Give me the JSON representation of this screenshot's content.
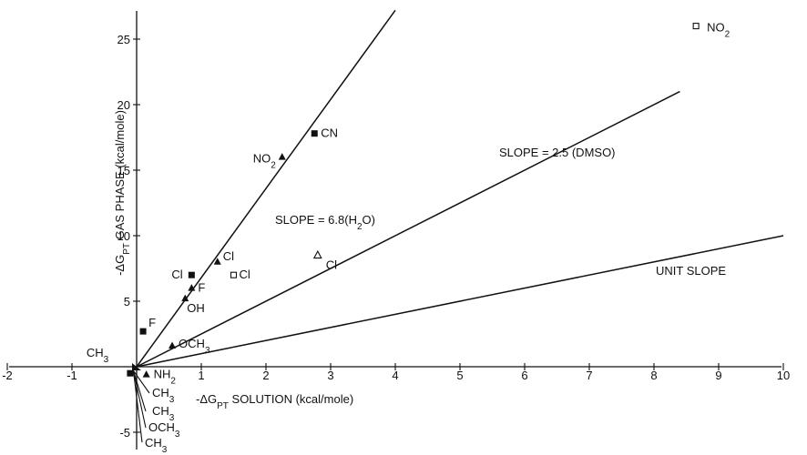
{
  "chart_data": {
    "type": "scatter",
    "title": "",
    "xlabel": "-ΔG_PT SOLUTION (kcal/mole)",
    "ylabel": "-ΔG_PT GAS PHASE (kcal/mole)",
    "xlim": [
      -2,
      10
    ],
    "ylim": [
      -6.5,
      27
    ],
    "x_ticks": [
      -2,
      -1,
      1,
      2,
      3,
      4,
      5,
      6,
      7,
      8,
      9,
      10
    ],
    "y_ticks": [
      -5,
      5,
      10,
      15,
      20,
      25
    ],
    "grid": false,
    "lines": [
      {
        "label": "SLOPE = 6.8(H2O)",
        "slope": 6.8,
        "x_end": 4.0
      },
      {
        "label": "SLOPE = 2.5 (DMSO)",
        "slope": 2.5,
        "x_end": 8.4
      },
      {
        "label": "UNIT SLOPE",
        "slope": 1.0,
        "x_end": 10.0
      }
    ],
    "series": [
      {
        "marker": "filled-triangle",
        "points": [
          {
            "label": "NO2",
            "x": 2.25,
            "y": 16.0
          },
          {
            "label": "Cl",
            "x": 1.25,
            "y": 8.0
          },
          {
            "label": "F",
            "x": 0.85,
            "y": 6.0
          },
          {
            "label": "OH",
            "x": 0.75,
            "y": 5.2
          },
          {
            "label": "OCH3",
            "x": 0.55,
            "y": 1.6
          },
          {
            "label": "NH2",
            "x": 0.15,
            "y": -0.6
          }
        ]
      },
      {
        "marker": "filled-square",
        "points": [
          {
            "label": "CN",
            "x": 2.75,
            "y": 17.8
          },
          {
            "label": "Cl",
            "x": 0.85,
            "y": 7.0
          },
          {
            "label": "F",
            "x": 0.1,
            "y": 2.7
          },
          {
            "label": "CH3",
            "x": -0.1,
            "y": -0.5
          }
        ]
      },
      {
        "marker": "open-square",
        "points": [
          {
            "label": "NO2",
            "x": 8.65,
            "y": 26.0
          },
          {
            "label": "Cl",
            "x": 1.5,
            "y": 7.0
          }
        ]
      },
      {
        "marker": "open-triangle",
        "points": [
          {
            "label": "Cl",
            "x": 2.8,
            "y": 8.5
          }
        ]
      }
    ],
    "annotations": [
      "CH3",
      "CH3",
      "OCH3",
      "CH3"
    ]
  }
}
